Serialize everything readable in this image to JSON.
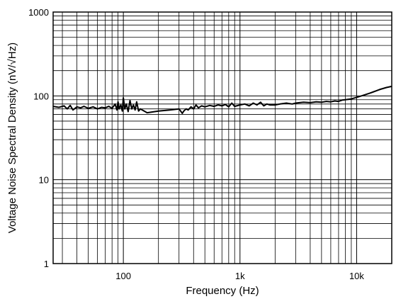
{
  "chart_data": {
    "type": "line",
    "xlabel": "Frequency (Hz)",
    "ylabel": "Voltage Noise Spectral Density (nV/√Hz)",
    "x_scale": "log",
    "y_scale": "log",
    "xlim": [
      25,
      20000
    ],
    "ylim": [
      1,
      1000
    ],
    "grid": true,
    "x_tick_labels": [
      {
        "value": 100,
        "label": "100"
      },
      {
        "value": 1000,
        "label": "1k"
      },
      {
        "value": 10000,
        "label": "10k"
      }
    ],
    "y_tick_labels": [
      {
        "value": 1,
        "label": "1"
      },
      {
        "value": 10,
        "label": "10"
      },
      {
        "value": 100,
        "label": "100"
      },
      {
        "value": 1000,
        "label": "1000"
      }
    ],
    "series": [
      {
        "color": "#000000",
        "x": [
          25,
          28,
          31,
          33,
          35,
          37,
          40,
          43,
          46,
          50,
          55,
          60,
          65,
          70,
          75,
          80,
          85,
          88,
          90,
          92,
          95,
          98,
          100,
          103,
          106,
          110,
          114,
          118,
          122,
          126,
          130,
          135,
          140,
          160,
          200,
          250,
          300,
          320,
          330,
          345,
          360,
          380,
          400,
          420,
          440,
          470,
          500,
          550,
          600,
          650,
          700,
          750,
          800,
          850,
          900,
          1000,
          1100,
          1200,
          1300,
          1400,
          1500,
          1600,
          1700,
          1800,
          2000,
          2200,
          2500,
          2800,
          3000,
          3500,
          4000,
          4500,
          5000,
          5500,
          6000,
          6500,
          7000,
          7500,
          8000,
          9000,
          10000,
          11000,
          12000,
          13000,
          14000,
          15000,
          16000,
          18000,
          20000
        ],
        "y": [
          75,
          73,
          76,
          70,
          77,
          68,
          74,
          72,
          75,
          71,
          74,
          70,
          73,
          72,
          75,
          71,
          80,
          68,
          85,
          70,
          78,
          66,
          95,
          70,
          80,
          65,
          88,
          70,
          78,
          68,
          85,
          66,
          70,
          63,
          66,
          68,
          70,
          62,
          66,
          70,
          68,
          74,
          70,
          78,
          72,
          76,
          74,
          77,
          75,
          78,
          76,
          79,
          74,
          82,
          75,
          78,
          80,
          76,
          82,
          78,
          84,
          76,
          80,
          78,
          78,
          80,
          82,
          80,
          82,
          84,
          83,
          85,
          84,
          86,
          85,
          87,
          86,
          89,
          90,
          92,
          96,
          100,
          104,
          108,
          112,
          116,
          120,
          126,
          130
        ]
      }
    ]
  }
}
